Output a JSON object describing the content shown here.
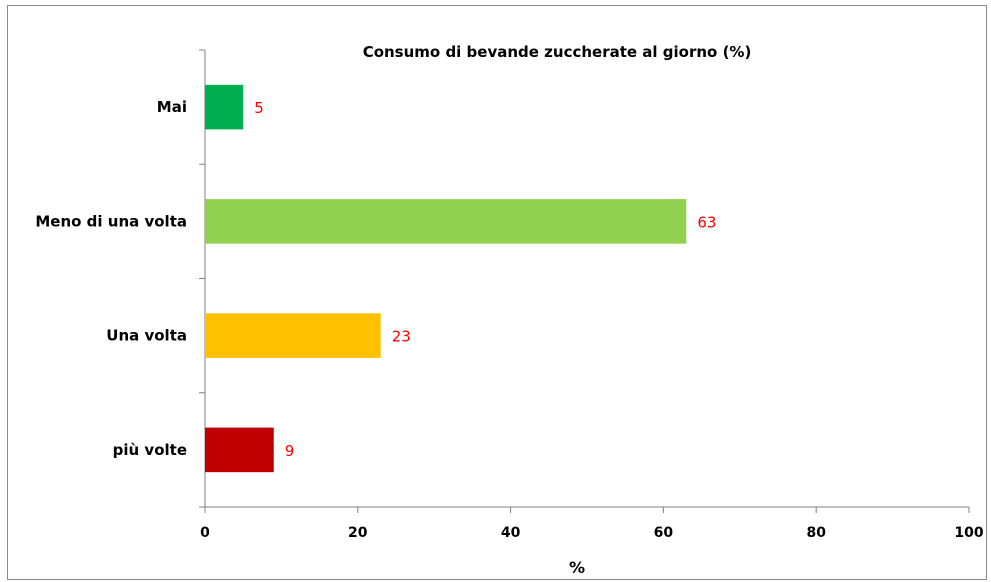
{
  "chart_data": {
    "type": "bar",
    "orientation": "horizontal",
    "title": "Consumo di bevande zuccherate al giorno (%)",
    "xlabel": "%",
    "ylabel": "",
    "categories": [
      "Mai",
      "Meno di una volta",
      "Una volta",
      "più volte"
    ],
    "values": [
      5,
      63,
      23,
      9
    ],
    "colors": [
      "#00b050",
      "#92d050",
      "#ffc000",
      "#c00000"
    ],
    "data_label_color": "#ff0000",
    "xlim": [
      0,
      100
    ],
    "xticks": [
      "0",
      "20",
      "40",
      "60",
      "80",
      "100"
    ],
    "grid": false,
    "legend": "none"
  }
}
